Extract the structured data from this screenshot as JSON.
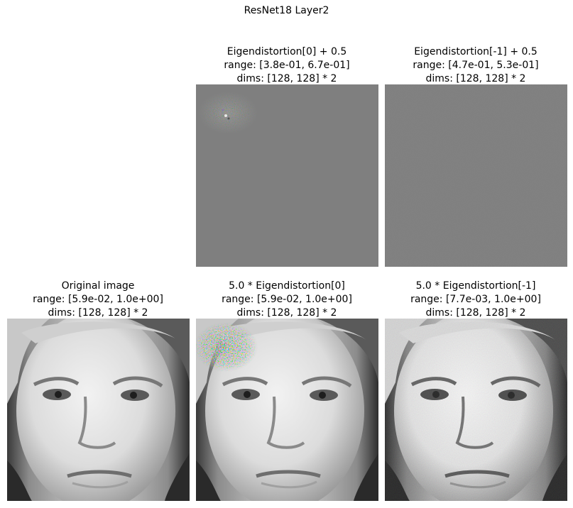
{
  "suptitle": "ResNet18 Layer2",
  "panels": [
    {
      "title": "Eigendistortion[0] + 0.5",
      "range": "range: [3.8e-01, 6.7e-01]",
      "dims": "dims: [128, 128] * 2",
      "content": "mostly uniform gray with faint colored noise near top-left"
    },
    {
      "title": "Eigendistortion[-1] + 0.5",
      "range": "range: [4.7e-01, 5.3e-01]",
      "dims": "dims: [128, 128] * 2",
      "content": "uniform gray with very faint noise"
    },
    {
      "title": "Original image",
      "range": "range: [5.9e-02, 1.0e+00]",
      "dims": "dims: [128, 128] * 2",
      "content": "grayscale portrait of an elderly woman"
    },
    {
      "title": "5.0 * Eigendistortion[0]",
      "range": "range: [5.9e-02, 1.0e+00]",
      "dims": "dims: [128, 128] * 2",
      "content": "grayscale portrait with colored noise patch on upper-left forehead"
    },
    {
      "title": "5.0 * Eigendistortion[-1]",
      "range": "range: [7.7e-03, 1.0e+00]",
      "dims": "dims: [128, 128] * 2",
      "content": "grayscale portrait with higher contrast and fine grain noise"
    }
  ],
  "colors": {
    "background": "#ffffff",
    "flat_gray": "#7f7f7f"
  }
}
